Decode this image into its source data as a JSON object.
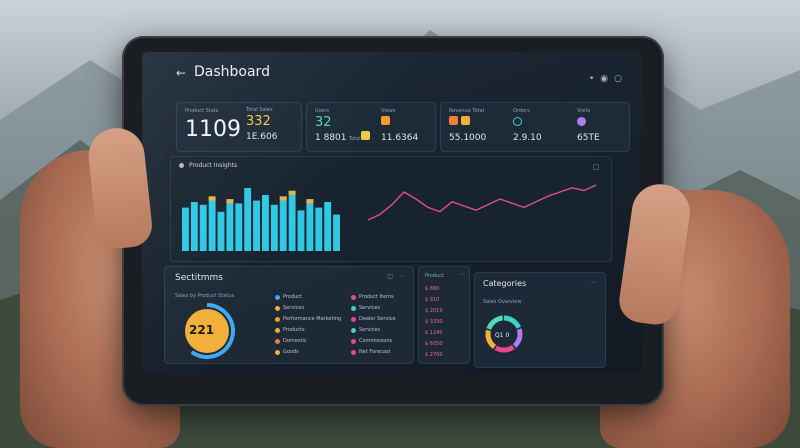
{
  "header": {
    "title": "Dashboard"
  },
  "stats": [
    {
      "label": "Product Stats",
      "value": "1109",
      "color": "#f1f5f8"
    },
    {
      "label": "Total Sales",
      "value": "332",
      "sub": "1E.606",
      "color": "#f2c94c"
    },
    {
      "label": "Users",
      "value": "32",
      "sub": "1 8801",
      "sub2": "Total",
      "color": "#56d6b6"
    },
    {
      "label": "Views",
      "value": "11.6364",
      "color": "#f39c2a"
    },
    {
      "label": "Revenue Total",
      "value": "55.1000",
      "color": "#ef7f3a"
    },
    {
      "label": "Orders",
      "value": "2.9.10",
      "color": "#3fd1c8"
    },
    {
      "label": "Visits",
      "value": "65TE",
      "color": "#b07cf0"
    }
  ],
  "chart_panel": {
    "title": "Product Insights"
  },
  "chart_data": [
    {
      "type": "bar",
      "values": [
        62,
        70,
        66,
        78,
        56,
        74,
        68,
        90,
        72,
        80,
        66,
        78,
        86,
        58,
        74,
        62,
        70,
        52
      ],
      "highlight": [
        0,
        0,
        0,
        1,
        0,
        1,
        0,
        0,
        0,
        0,
        0,
        1,
        1,
        0,
        1,
        0,
        0,
        0
      ],
      "ylim": [
        0,
        100
      ],
      "bar_color": "#2fc8e4",
      "highlight_color": "#f2b03a"
    },
    {
      "type": "line",
      "values": [
        40,
        48,
        62,
        80,
        70,
        58,
        52,
        66,
        60,
        54,
        62,
        70,
        64,
        58,
        66,
        74,
        80,
        86,
        82,
        90
      ],
      "ylim": [
        0,
        100
      ],
      "line_color": "#e64a8c"
    }
  ],
  "bottom_left": {
    "title": "Sectitmms",
    "subtitle": "Sales by Product Status",
    "gauge_value": "221",
    "gauge_fraction": 0.6,
    "list1": [
      "Product",
      "Services",
      "Performance Marketing",
      "Products",
      "Domestic",
      "Goods"
    ],
    "list1_colors": [
      "#3fa9f5",
      "#f2b03a",
      "#f39c2a",
      "#f2b03a",
      "#ef7f3a",
      "#f2b03a"
    ],
    "list2": [
      "Product Items",
      "Services",
      "Dealer Service",
      "Services",
      "Commissions",
      "Net Forecast"
    ],
    "list2_colors": [
      "#e64a8c",
      "#3fd1c8",
      "#e64a8c",
      "#3fd1c8",
      "#e64a8c",
      "#e64a8c"
    ]
  },
  "mid_panel": {
    "title": "Product",
    "rows": [
      "$ 880",
      "$ 910",
      "$ 2019",
      "$ 3330",
      "$ 1240",
      "$ 6050",
      "$ 2700"
    ]
  },
  "right_panel": {
    "title": "Categories",
    "subtitle": "Sales Overview",
    "donut_value": "Q1 0"
  }
}
